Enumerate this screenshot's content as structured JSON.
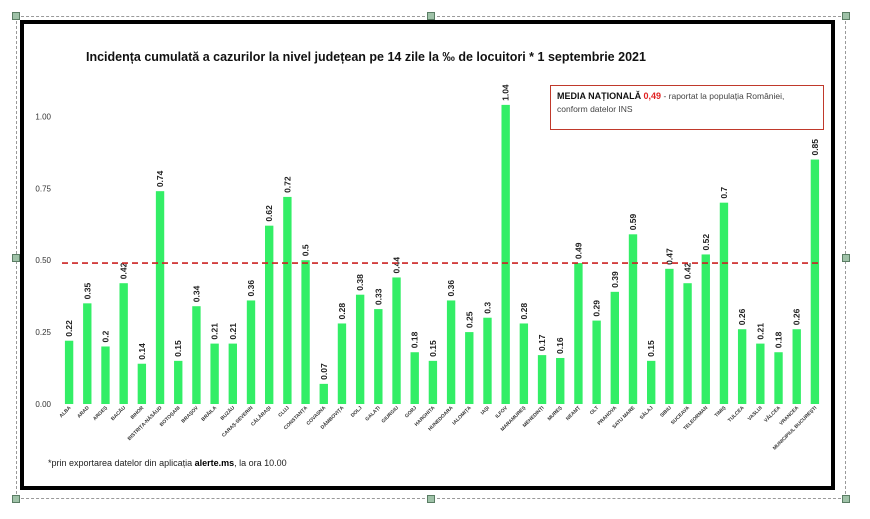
{
  "chart_data": {
    "type": "bar",
    "title": "Incidența cumulată a cazurilor la nivel județean pe 14 zile la ‰ de locuitori * 1 septembrie 2021",
    "categories": [
      "ALBA",
      "ARAD",
      "ARGEȘ",
      "BACĂU",
      "BIHOR",
      "BISTRIȚA-NĂSĂUD",
      "BOTOȘANI",
      "BRAȘOV",
      "BRĂILA",
      "BUZĂU",
      "CARAȘ-SEVERIN",
      "CĂLĂRAȘI",
      "CLUJ",
      "CONSTANȚA",
      "COVASNA",
      "DÂMBOVIȚA",
      "DOLJ",
      "GALAȚI",
      "GIURGIU",
      "GORJ",
      "HARGHITA",
      "HUNEDOARA",
      "IALOMIȚA",
      "IAȘI",
      "ILFOV",
      "MARAMUREȘ",
      "MEHEDINȚI",
      "MUREȘ",
      "NEAMȚ",
      "OLT",
      "PRAHOVA",
      "SATU MARE",
      "SĂLAJ",
      "SIBIU",
      "SUCEAVA",
      "TELEORMAN",
      "TIMIȘ",
      "TULCEA",
      "VASLUI",
      "VÂLCEA",
      "VRANCEA",
      "MUNICIPIUL BUCUREȘTI"
    ],
    "values": [
      0.22,
      0.35,
      0.2,
      0.42,
      0.14,
      0.74,
      0.15,
      0.34,
      0.21,
      0.21,
      0.36,
      0.62,
      0.72,
      0.5,
      0.07,
      0.28,
      0.38,
      0.33,
      0.44,
      0.18,
      0.15,
      0.36,
      0.25,
      0.3,
      1.04,
      0.28,
      0.17,
      0.16,
      0.49,
      0.29,
      0.39,
      0.59,
      0.15,
      0.47,
      0.42,
      0.52,
      0.7,
      0.26,
      0.21,
      0.18,
      0.26,
      0.85
    ],
    "value_labels": [
      "0.22",
      "0.35",
      "0.2",
      "0.42",
      "0.14",
      "0.74",
      "0.15",
      "0.34",
      "0.21",
      "0.21",
      "0.36",
      "0.62",
      "0.72",
      "0.5",
      "0.07",
      "0.28",
      "0.38",
      "0.33",
      "0.44",
      "0.18",
      "0.15",
      "0.36",
      "0.25",
      "0.3",
      "1.04",
      "0.28",
      "0.17",
      "0.16",
      "0.49",
      "0.29",
      "0.39",
      "0.59",
      "0.15",
      "0.47",
      "0.42",
      "0.52",
      "0.7",
      "0.26",
      "0.21",
      "0.18",
      "0.26",
      "0.85"
    ],
    "yticks": [
      "0.00",
      "0.25",
      "0.50",
      "0.75",
      "1.00"
    ],
    "ytick_values": [
      0,
      0.25,
      0.5,
      0.75,
      1.0
    ],
    "ylim": [
      0,
      1.13
    ],
    "national_average": 0.49,
    "grid": false,
    "legend_position": "top-right",
    "colors": {
      "bar": "#33ee66",
      "average_line": "#cc2222"
    }
  },
  "legend": {
    "title": "MEDIA NAȚIONALĂ",
    "value": "0,49",
    "text": " - raportat la populația României, conform datelor INS"
  },
  "footnote": {
    "prefix": "*prin exportarea datelor din aplicația ",
    "app": "alerte.ms",
    "suffix": ", la ora 10.00"
  }
}
